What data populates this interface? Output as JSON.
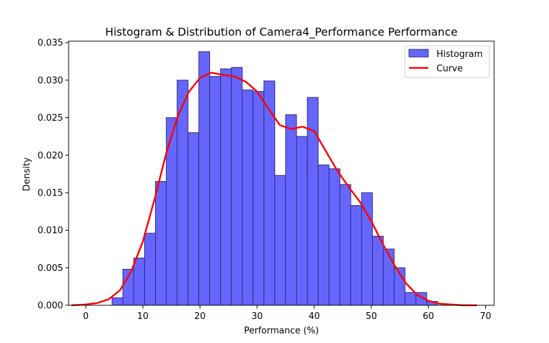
{
  "chart_data": {
    "type": "bar",
    "title": "Histogram & Distribution of Camera4_Performance Performance",
    "xlabel": "Performance (%)",
    "ylabel": "Density",
    "xlim": [
      -3.0,
      71.5
    ],
    "ylim": [
      0,
      0.0352
    ],
    "x_ticks": [
      0,
      10,
      20,
      30,
      40,
      50,
      60,
      70
    ],
    "y_ticks": [
      0.0,
      0.005,
      0.01,
      0.015,
      0.02,
      0.025,
      0.03,
      0.035
    ],
    "y_tick_labels": [
      "0.000",
      "0.005",
      "0.010",
      "0.015",
      "0.020",
      "0.025",
      "0.030",
      "0.035"
    ],
    "legend_position": "top-right",
    "grid": false,
    "colors": {
      "bar_fill": "#6666ff",
      "bar_edge": "#2a2a7a",
      "curve": "#ff0000"
    },
    "series": [
      {
        "name": "Histogram",
        "type": "histogram",
        "bin_edges": [
          4.6,
          6.5,
          8.4,
          10.3,
          12.2,
          14.1,
          16.0,
          17.9,
          19.8,
          21.7,
          23.6,
          25.5,
          27.4,
          29.3,
          31.2,
          33.1,
          35.0,
          36.9,
          38.8,
          40.7,
          42.6,
          44.5,
          46.4,
          48.3,
          50.2,
          52.1,
          54.0,
          55.9,
          57.8,
          59.7,
          61.6
        ],
        "values": [
          0.001,
          0.0048,
          0.0063,
          0.0096,
          0.0165,
          0.025,
          0.03,
          0.023,
          0.0338,
          0.0305,
          0.0315,
          0.0317,
          0.0287,
          0.0285,
          0.0299,
          0.0173,
          0.0254,
          0.0225,
          0.0277,
          0.0187,
          0.0182,
          0.0161,
          0.0133,
          0.015,
          0.0092,
          0.0075,
          0.005,
          0.0017,
          0.0017,
          0.0005
        ]
      },
      {
        "name": "Curve",
        "type": "line",
        "x": [
          -2.5,
          0,
          2,
          4,
          6,
          8,
          10,
          12,
          14,
          16,
          18,
          20,
          22,
          24,
          26,
          28,
          30,
          32,
          34,
          36,
          38,
          40,
          42,
          44,
          46,
          48,
          50,
          52,
          54,
          56,
          58,
          60,
          62,
          64,
          66,
          68.5
        ],
        "y": [
          0.0,
          0.0001,
          0.0003,
          0.0008,
          0.002,
          0.0046,
          0.0085,
          0.014,
          0.02,
          0.025,
          0.0284,
          0.0303,
          0.031,
          0.0307,
          0.0305,
          0.0298,
          0.0285,
          0.0262,
          0.024,
          0.0235,
          0.0238,
          0.0232,
          0.0206,
          0.018,
          0.0158,
          0.0138,
          0.0112,
          0.0082,
          0.0054,
          0.003,
          0.0014,
          0.0006,
          0.0002,
          0.0001,
          0.0,
          0.0
        ]
      }
    ]
  }
}
